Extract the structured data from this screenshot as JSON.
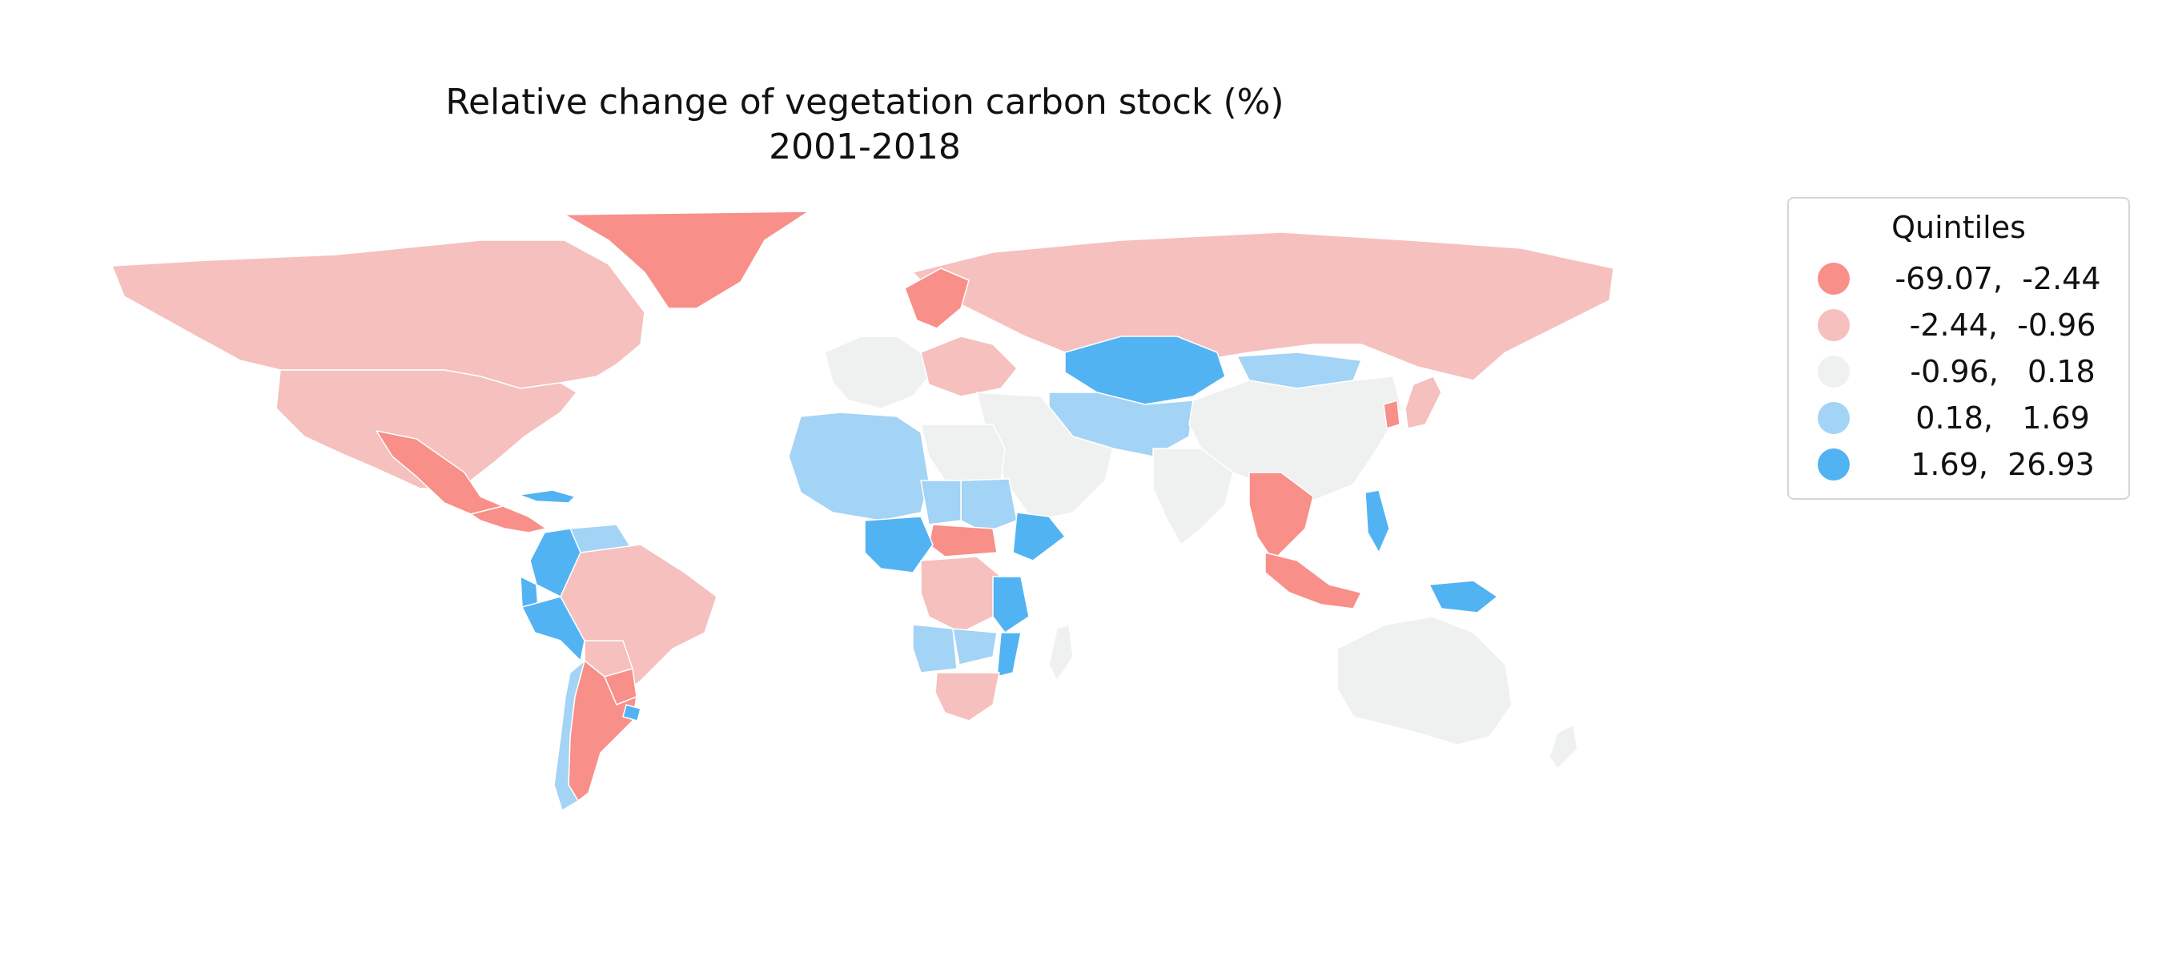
{
  "title": {
    "line1": "Relative change of vegetation carbon stock (%)",
    "line2": "2001-2018"
  },
  "legend": {
    "title": "Quintiles",
    "items": [
      {
        "label": "-69.07,  -2.44",
        "color": "#f88f88",
        "class_index": 0
      },
      {
        "label": " -2.44,  -0.96",
        "color": "#f5c0bd",
        "class_index": 1
      },
      {
        "label": " -0.96,   0.18",
        "color": "#eff1f1",
        "class_index": 2
      },
      {
        "label": " 0.18,   1.69",
        "color": "#a3d3f5",
        "class_index": 3
      },
      {
        "label": " 1.69,  26.93",
        "color": "#52b3f3",
        "class_index": 4
      }
    ]
  },
  "map": {
    "regions": [
      {
        "name": "Greenland",
        "class_index": 0
      },
      {
        "name": "Canada",
        "class_index": 1
      },
      {
        "name": "United States",
        "class_index": 1
      },
      {
        "name": "Mexico",
        "class_index": 0
      },
      {
        "name": "Central America",
        "class_index": 0
      },
      {
        "name": "Cuba",
        "class_index": 4
      },
      {
        "name": "Venezuela",
        "class_index": 3
      },
      {
        "name": "Colombia",
        "class_index": 4
      },
      {
        "name": "Ecuador",
        "class_index": 4
      },
      {
        "name": "Peru",
        "class_index": 4
      },
      {
        "name": "Brazil",
        "class_index": 1
      },
      {
        "name": "Bolivia",
        "class_index": 1
      },
      {
        "name": "Paraguay",
        "class_index": 0
      },
      {
        "name": "Argentina",
        "class_index": 0
      },
      {
        "name": "Chile",
        "class_index": 3
      },
      {
        "name": "Uruguay",
        "class_index": 4
      },
      {
        "name": "Russia",
        "class_index": 1
      },
      {
        "name": "Scandinavia",
        "class_index": 0
      },
      {
        "name": "Western Europe",
        "class_index": 2
      },
      {
        "name": "Eastern Europe",
        "class_index": 1
      },
      {
        "name": "Kazakhstan",
        "class_index": 4
      },
      {
        "name": "Mongolia",
        "class_index": 3
      },
      {
        "name": "Central Asia",
        "class_index": 3
      },
      {
        "name": "China",
        "class_index": 2
      },
      {
        "name": "Middle East",
        "class_index": 2
      },
      {
        "name": "India",
        "class_index": 2
      },
      {
        "name": "Southeast Asia mainland",
        "class_index": 0
      },
      {
        "name": "Korea",
        "class_index": 0
      },
      {
        "name": "Japan",
        "class_index": 1
      },
      {
        "name": "Philippines",
        "class_index": 4
      },
      {
        "name": "Indonesia",
        "class_index": 0
      },
      {
        "name": "Papua New Guinea",
        "class_index": 4
      },
      {
        "name": "Australia",
        "class_index": 2
      },
      {
        "name": "New Zealand",
        "class_index": 2
      },
      {
        "name": "North Africa west",
        "class_index": 3
      },
      {
        "name": "North Africa east",
        "class_index": 2
      },
      {
        "name": "Sudan",
        "class_index": 3
      },
      {
        "name": "Chad",
        "class_index": 3
      },
      {
        "name": "Ethiopia",
        "class_index": 4
      },
      {
        "name": "Central African Republic",
        "class_index": 0
      },
      {
        "name": "Nigeria",
        "class_index": 4
      },
      {
        "name": "DR Congo",
        "class_index": 1
      },
      {
        "name": "Tanzania",
        "class_index": 4
      },
      {
        "name": "Angola",
        "class_index": 3
      },
      {
        "name": "Zambia",
        "class_index": 3
      },
      {
        "name": "Mozambique",
        "class_index": 4
      },
      {
        "name": "South Africa",
        "class_index": 1
      },
      {
        "name": "Madagascar",
        "class_index": 2
      }
    ]
  }
}
